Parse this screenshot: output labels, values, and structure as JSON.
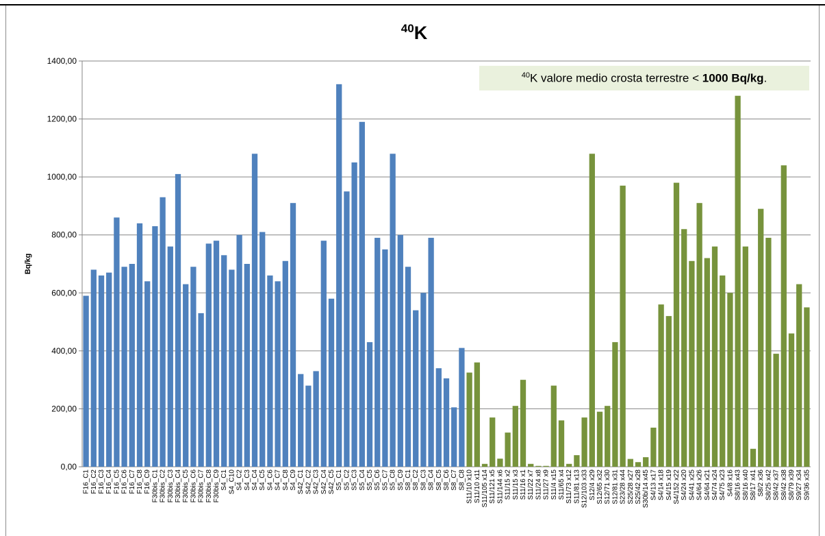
{
  "chart_data": {
    "type": "bar",
    "title_sup": "40",
    "title": "K",
    "ylabel": "Bq/kg",
    "ylim": [
      0,
      1400
    ],
    "yticks": [
      "0,00",
      "200,00",
      "400,00",
      "600,00",
      "800,00",
      "1000,00",
      "1200,00",
      "1400,00"
    ],
    "grid": true,
    "annotation": {
      "sup": "40",
      "text": "K valore medio crosta terrestre < ",
      "bold": "1000 Bq/kg",
      "end": "."
    },
    "colors": {
      "blue": "#4f81bd",
      "green": "#77933c"
    },
    "categories": [
      "F16_C1",
      "F16_C2",
      "F16_C3",
      "F16_C4",
      "F16_C5",
      "F16_C6",
      "F16_C7",
      "F16_C8",
      "F16_C9",
      "F30bis_C1",
      "F30bis_C2",
      "F30bis_C3",
      "F30bis_C4",
      "F30bis_C5",
      "F30bis_C6",
      "F30bis_C7",
      "F30bis_C8",
      "F30bis_C9",
      "S4_C1",
      "S4_C10",
      "S4_C2",
      "S4_C3",
      "S4_C4",
      "S4_C5",
      "S4_C6",
      "S4_C7",
      "S4_C8",
      "S4_C9",
      "S42_C1",
      "S42_C2",
      "S42_C3",
      "S42_C4",
      "S42_C5",
      "S5_C1",
      "S5_C2",
      "S5_C3",
      "S5_C4",
      "S5_C5",
      "S5_C6",
      "S5_C7",
      "S5_C8",
      "S5_C9",
      "S8_C1",
      "S8_C2",
      "S8_C3",
      "S8_C4",
      "S8_C5",
      "S8_C6",
      "S8_C7",
      "S8_C8",
      "S11/10 x10",
      "S11/10 x11",
      "S11/105 x14",
      "S11/121 x5",
      "S11/144 x6",
      "S11/15 x2",
      "S11/15 x3",
      "S11/16 x1",
      "S11/22 x7",
      "S11/24 x8",
      "S11/27 x9",
      "S11/4 x15",
      "S11/65 x4",
      "S11/73 x12",
      "S11/81 x13",
      "S12/103 x33",
      "S12/4 x29",
      "S12/65 x32",
      "S12/71 x30",
      "S12/81 x31",
      "S23/28 x44",
      "S25/28 x27",
      "S25/42 x28",
      "S30b/14 x45",
      "S4/13 x17",
      "S4/14 x18",
      "S4/15 x19",
      "S4/152 x22",
      "S4/24 x20",
      "S4/41 x25",
      "S4/64 x26",
      "S4/64 x21",
      "S4/74 x24",
      "S4/75 x23",
      "S4/8 x16",
      "S8/16 x43",
      "S8/16 x40",
      "S8/17 x41",
      "S8/2 x36",
      "S8/25 x42",
      "S8/42 x37",
      "S8/42 x38",
      "S8/79 x39",
      "S9/27 x34",
      "S9/36 x35"
    ],
    "values": [
      590,
      680,
      660,
      670,
      860,
      690,
      700,
      840,
      640,
      830,
      930,
      760,
      1010,
      630,
      690,
      530,
      770,
      780,
      730,
      680,
      800,
      700,
      1080,
      810,
      660,
      640,
      710,
      910,
      320,
      280,
      330,
      780,
      580,
      1320,
      950,
      1050,
      1190,
      430,
      790,
      750,
      1080,
      800,
      690,
      540,
      600,
      790,
      340,
      305,
      205,
      410,
      325,
      360,
      10,
      170,
      28,
      118,
      210,
      300,
      10,
      3,
      3,
      280,
      160,
      10,
      40,
      170,
      1080,
      190,
      210,
      430,
      970,
      27,
      16,
      33,
      135,
      560,
      520,
      980,
      820,
      710,
      910,
      720,
      760,
      660,
      600,
      1280,
      760,
      62,
      890,
      790,
      390,
      1040,
      460,
      630,
      550
    ],
    "series": [
      {
        "color": "blue",
        "start": 0,
        "end": 50
      },
      {
        "color": "green",
        "start": 50,
        "end": 95
      }
    ]
  }
}
